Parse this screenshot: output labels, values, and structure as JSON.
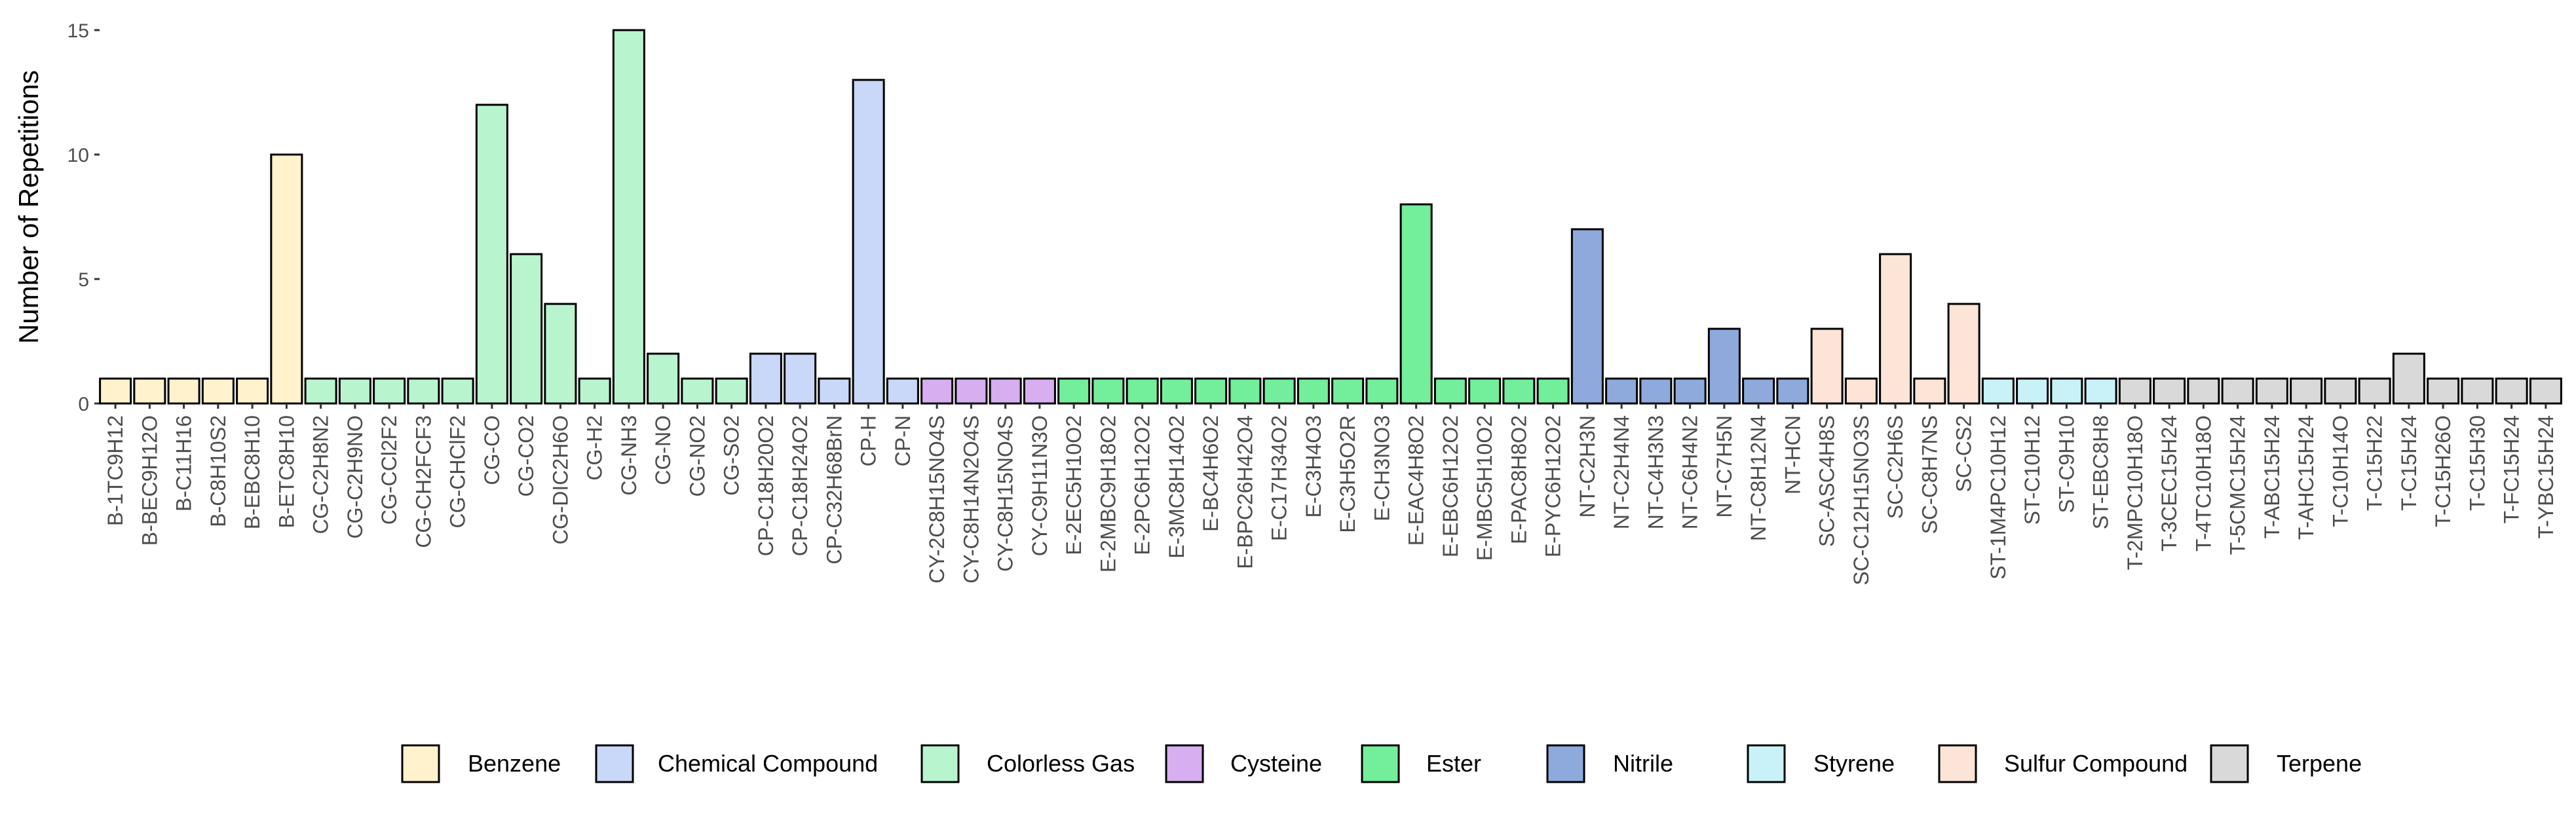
{
  "chart_data": {
    "type": "bar",
    "title": "",
    "xlabel": "",
    "ylabel": "Number of Repetitions",
    "ylim": [
      0,
      15
    ],
    "yticks": [
      0,
      5,
      10,
      15
    ],
    "grid": false,
    "legend_position": "bottom",
    "groups": [
      {
        "name": "Benzene",
        "color": "#FFF2CC"
      },
      {
        "name": "Chemical Compound",
        "color": "#C9D7F8"
      },
      {
        "name": "Colorless Gas",
        "color": "#B8F5CF"
      },
      {
        "name": "Cysteine",
        "color": "#D7AEF0"
      },
      {
        "name": "Ester",
        "color": "#73EE9A"
      },
      {
        "name": "Nitrile",
        "color": "#8EA9DB"
      },
      {
        "name": "Styrene",
        "color": "#C8F2F8"
      },
      {
        "name": "Sulfur Compound",
        "color": "#FCE4D6"
      },
      {
        "name": "Terpene",
        "color": "#D9D9D9"
      }
    ],
    "categories": [
      "B-1TC9H12",
      "B-BEC9H12O",
      "B-C11H16",
      "B-C8H10S2",
      "B-EBC8H10",
      "B-ETC8H10",
      "CG-C2H8N2",
      "CG-C2H9NO",
      "CG-CCl2F2",
      "CG-CH2FCF3",
      "CG-CHClF2",
      "CG-CO",
      "CG-CO2",
      "CG-DIC2H6O",
      "CG-H2",
      "CG-NH3",
      "CG-NO",
      "CG-NO2",
      "CG-SO2",
      "CP-C18H20O2",
      "CP-C18H24O2",
      "CP-C32H68BrN",
      "CP-H",
      "CP-N",
      "CY-2C8H15NO4S",
      "CY-C8H14N2O4S",
      "CY-C8H15NO4S",
      "CY-C9H11N3O",
      "E-2EC5H10O2",
      "E-2MBC9H18O2",
      "E-2PC6H12O2",
      "E-3MC8H14O2",
      "E-BC4H6O2",
      "E-BPC26H42O4",
      "E-C17H34O2",
      "E-C3H4O3",
      "E-C3H5O2R",
      "E-CH3NO3",
      "E-EAC4H8O2",
      "E-EBC6H12O2",
      "E-MBC5H10O2",
      "E-PAC8H8O2",
      "E-PYC6H12O2",
      "NT-C2H3N",
      "NT-C2H4N4",
      "NT-C4H3N3",
      "NT-C6H4N2",
      "NT-C7H5N",
      "NT-C8H12N4",
      "NT-HCN",
      "SC-ASC4H8S",
      "SC-C12H15NO3S",
      "SC-C2H6S",
      "SC-C8H7NS",
      "SC-CS2",
      "ST-1M4PC10H12",
      "ST-C10H12",
      "ST-C9H10",
      "ST-EBC8H8",
      "T-2MPC10H18O",
      "T-3CEC15H24",
      "T-4TC10H18O",
      "T-5CMC15H24",
      "T-ABC15H24",
      "T-AHC15H24",
      "T-C10H14O",
      "T-C15H22",
      "T-C15H24",
      "T-C15H26O",
      "T-C15H30",
      "T-FC15H24",
      "T-YBC15H24"
    ],
    "values": [
      1,
      1,
      1,
      1,
      1,
      10,
      1,
      1,
      1,
      1,
      1,
      12,
      6,
      4,
      1,
      15,
      2,
      1,
      1,
      2,
      2,
      1,
      13,
      1,
      1,
      1,
      1,
      1,
      1,
      1,
      1,
      1,
      1,
      1,
      1,
      1,
      1,
      1,
      8,
      1,
      1,
      1,
      1,
      7,
      1,
      1,
      1,
      3,
      1,
      1,
      3,
      1,
      6,
      1,
      4,
      1,
      1,
      1,
      1,
      1,
      1,
      1,
      1,
      1,
      1,
      1,
      1,
      2,
      1,
      1,
      1,
      1
    ],
    "category_group": [
      "Benzene",
      "Benzene",
      "Benzene",
      "Benzene",
      "Benzene",
      "Benzene",
      "Colorless Gas",
      "Colorless Gas",
      "Colorless Gas",
      "Colorless Gas",
      "Colorless Gas",
      "Colorless Gas",
      "Colorless Gas",
      "Colorless Gas",
      "Colorless Gas",
      "Colorless Gas",
      "Colorless Gas",
      "Colorless Gas",
      "Colorless Gas",
      "Chemical Compound",
      "Chemical Compound",
      "Chemical Compound",
      "Chemical Compound",
      "Chemical Compound",
      "Cysteine",
      "Cysteine",
      "Cysteine",
      "Cysteine",
      "Ester",
      "Ester",
      "Ester",
      "Ester",
      "Ester",
      "Ester",
      "Ester",
      "Ester",
      "Ester",
      "Ester",
      "Ester",
      "Ester",
      "Ester",
      "Ester",
      "Ester",
      "Nitrile",
      "Nitrile",
      "Nitrile",
      "Nitrile",
      "Nitrile",
      "Nitrile",
      "Nitrile",
      "Sulfur Compound",
      "Sulfur Compound",
      "Sulfur Compound",
      "Sulfur Compound",
      "Sulfur Compound",
      "Styrene",
      "Styrene",
      "Styrene",
      "Styrene",
      "Terpene",
      "Terpene",
      "Terpene",
      "Terpene",
      "Terpene",
      "Terpene",
      "Terpene",
      "Terpene",
      "Terpene",
      "Terpene",
      "Terpene",
      "Terpene",
      "Terpene"
    ]
  }
}
